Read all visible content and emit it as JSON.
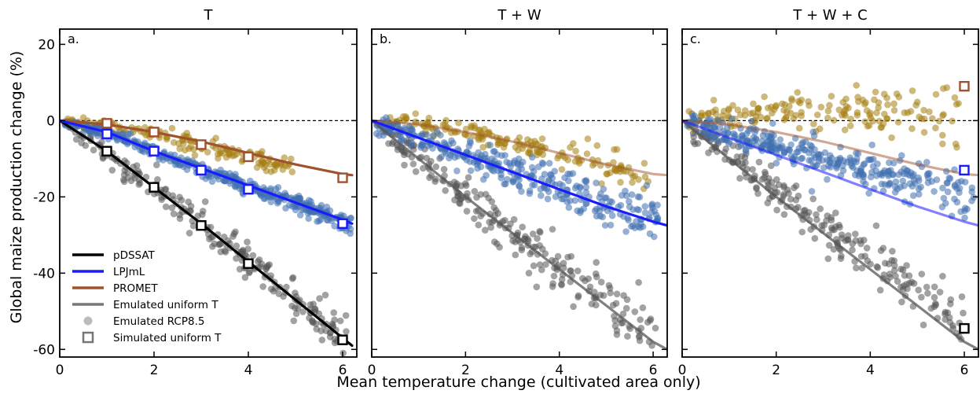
{
  "figure": {
    "ylabel": "Global maize production change (%)",
    "xlabel": "Mean temperature change (cultivated area only)"
  },
  "colors": {
    "pDSSAT": "#000000",
    "LPJmL": "#1a1aff",
    "PROMET": "#a0522d",
    "gray_emulated": "#555555",
    "dssat_points": "#555555",
    "lpjml_points": "#3f6fb0",
    "promet_points": "#a57f12"
  },
  "legend": {
    "placement": "lower-left of panel a",
    "items": [
      {
        "label": "pDSSAT",
        "kind": "line",
        "color": "#000000"
      },
      {
        "label": "LPJmL",
        "kind": "line",
        "color": "#1a1aff"
      },
      {
        "label": "PROMET",
        "kind": "line",
        "color": "#a0522d"
      },
      {
        "label": "Emulated uniform T",
        "kind": "line",
        "color": "#777777"
      },
      {
        "label": "Emulated RCP8.5",
        "kind": "point",
        "color": "#bbbbbb"
      },
      {
        "label": "Simulated uniform T",
        "kind": "square",
        "color": "#777777"
      }
    ]
  },
  "chart_data": [
    {
      "type": "scatter",
      "title": "T",
      "panel_label": "a.",
      "xlim": [
        0,
        6.3
      ],
      "ylim": [
        -62,
        24
      ],
      "xticks": [
        0,
        2,
        4,
        6
      ],
      "yticks": [
        20,
        0,
        -20,
        -40,
        -60
      ],
      "ytick_labels": [
        "20",
        "0",
        "-20",
        "-40",
        "-60"
      ],
      "show_yticklabels": true,
      "zero_line": true,
      "series": [
        {
          "name": "pDSSAT",
          "line_style": "solid",
          "line": [
            [
              0,
              0
            ],
            [
              1,
              -8
            ],
            [
              2,
              -17.5
            ],
            [
              3,
              -27
            ],
            [
              4,
              -37
            ],
            [
              5,
              -47
            ],
            [
              6,
              -57
            ],
            [
              6.2,
              -59
            ]
          ],
          "cloud": {
            "x_min": 0.2,
            "x_max": 6.1,
            "offset": 0,
            "spread": 3.2,
            "n": 230
          },
          "squares": [
            [
              1,
              -8
            ],
            [
              2,
              -17.5
            ],
            [
              3,
              -27.5
            ],
            [
              4,
              -37.5
            ],
            [
              6,
              -57.5
            ]
          ]
        },
        {
          "name": "LPJmL",
          "line_style": "solid",
          "line": [
            [
              0,
              0
            ],
            [
              1,
              -3
            ],
            [
              2,
              -8
            ],
            [
              3,
              -12.5
            ],
            [
              4,
              -17
            ],
            [
              5,
              -21.5
            ],
            [
              6,
              -26
            ],
            [
              6.2,
              -27
            ]
          ],
          "cloud": {
            "x_min": 0.1,
            "x_max": 6.2,
            "offset": -0.5,
            "spread": 1.3,
            "n": 420
          },
          "squares": [
            [
              1,
              -3.5
            ],
            [
              2,
              -8
            ],
            [
              3,
              -13
            ],
            [
              4,
              -18
            ],
            [
              6,
              -27
            ]
          ]
        },
        {
          "name": "PROMET",
          "line_style": "solid",
          "line": [
            [
              0,
              0
            ],
            [
              1,
              -1
            ],
            [
              2,
              -3
            ],
            [
              3,
              -5.5
            ],
            [
              4,
              -8.5
            ],
            [
              5,
              -11.5
            ],
            [
              6,
              -14
            ],
            [
              6.2,
              -14.3
            ]
          ],
          "cloud": {
            "x_min": 0.1,
            "x_max": 5.0,
            "offset": -1.5,
            "spread": 1.5,
            "n": 160
          },
          "squares": [
            [
              1,
              -0.7
            ],
            [
              2,
              -3
            ],
            [
              3,
              -6.3
            ],
            [
              4,
              -9.5
            ],
            [
              6,
              -15
            ]
          ]
        }
      ]
    },
    {
      "type": "scatter",
      "title": "T + W",
      "panel_label": "b.",
      "xlim": [
        0,
        6.3
      ],
      "ylim": [
        -62,
        24
      ],
      "xticks": [
        0,
        2,
        4,
        6
      ],
      "yticks": [
        20,
        0,
        -20,
        -40,
        -60
      ],
      "ytick_labels": [
        "20",
        "0",
        "-20",
        "-40",
        "-60"
      ],
      "show_yticklabels": false,
      "zero_line": true,
      "series": [
        {
          "name": "pDSSAT",
          "line_style": "faded",
          "line": [
            [
              0,
              0
            ],
            [
              1,
              -10
            ],
            [
              2,
              -20
            ],
            [
              3,
              -29.5
            ],
            [
              4,
              -39
            ],
            [
              5,
              -48.5
            ],
            [
              6,
              -58
            ],
            [
              6.3,
              -60
            ]
          ],
          "cloud": {
            "x_min": 0.2,
            "x_max": 6.1,
            "offset": 0,
            "spread": 4.0,
            "n": 230
          },
          "squares": []
        },
        {
          "name": "LPJmL",
          "line_style": "solid",
          "line": [
            [
              0,
              0
            ],
            [
              1,
              -4.5
            ],
            [
              2,
              -9
            ],
            [
              3,
              -13.5
            ],
            [
              4,
              -18
            ],
            [
              5,
              -22.5
            ],
            [
              6,
              -26.5
            ],
            [
              6.3,
              -27.5
            ]
          ],
          "cloud": {
            "x_min": 0.1,
            "x_max": 6.1,
            "offset": 0.5,
            "spread": 3.2,
            "n": 330
          },
          "squares": []
        },
        {
          "name": "PROMET",
          "line_style": "faded",
          "line": [
            [
              0,
              0
            ],
            [
              1,
              -1
            ],
            [
              2,
              -3
            ],
            [
              3,
              -5.5
            ],
            [
              4,
              -8.5
            ],
            [
              5,
              -11.5
            ],
            [
              6,
              -14
            ],
            [
              6.3,
              -14.3
            ]
          ],
          "cloud": {
            "x_min": 0.1,
            "x_max": 5.9,
            "offset": -0.5,
            "spread": 2.0,
            "n": 170
          },
          "squares": []
        }
      ]
    },
    {
      "type": "scatter",
      "title": "T + W + C",
      "panel_label": "c.",
      "xlim": [
        0,
        6.3
      ],
      "ylim": [
        -62,
        24
      ],
      "xticks": [
        0,
        2,
        4,
        6
      ],
      "yticks": [
        20,
        0,
        -20,
        -40,
        -60
      ],
      "ytick_labels": [
        "20",
        "0",
        "-20",
        "-40",
        "-60"
      ],
      "show_yticklabels": false,
      "zero_line": true,
      "series": [
        {
          "name": "pDSSAT",
          "line_style": "faded",
          "line": [
            [
              0,
              0
            ],
            [
              1,
              -10
            ],
            [
              2,
              -20
            ],
            [
              3,
              -29.5
            ],
            [
              4,
              -39
            ],
            [
              5,
              -48.5
            ],
            [
              6,
              -58
            ],
            [
              6.3,
              -60
            ]
          ],
          "cloud": {
            "x_min": 0.2,
            "x_max": 6.0,
            "offset": 5.0,
            "spread": 4.0,
            "n": 230
          },
          "squares": [
            [
              6,
              -54.5
            ]
          ]
        },
        {
          "name": "LPJmL",
          "line_style": "faded",
          "line": [
            [
              0,
              0
            ],
            [
              1,
              -4.5
            ],
            [
              2,
              -9
            ],
            [
              3,
              -13.5
            ],
            [
              4,
              -18
            ],
            [
              5,
              -22.5
            ],
            [
              6,
              -26.5
            ],
            [
              6.3,
              -27.5
            ]
          ],
          "cloud": {
            "x_min": 0.1,
            "x_max": 6.2,
            "offset": 7.5,
            "spread": 3.2,
            "n": 330
          },
          "squares": [
            [
              6,
              -13
            ]
          ]
        },
        {
          "name": "PROMET",
          "line_style": "faded",
          "line": [
            [
              0,
              0
            ],
            [
              1,
              -1
            ],
            [
              2,
              -3
            ],
            [
              3,
              -5.5
            ],
            [
              4,
              -8.5
            ],
            [
              5,
              -11.5
            ],
            [
              6,
              -14
            ],
            [
              6.3,
              -14.3
            ]
          ],
          "cloud": {
            "x_min": 0.1,
            "x_max": 5.9,
            "offset": 15.5,
            "spread": 4.0,
            "n": 170
          },
          "squares": [
            [
              6,
              9
            ]
          ]
        }
      ]
    }
  ]
}
